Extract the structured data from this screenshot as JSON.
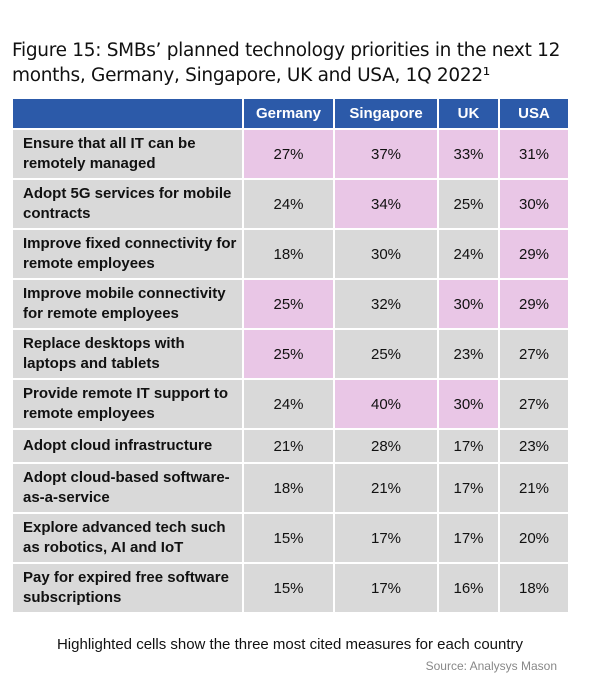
{
  "header": {
    "title": "Figure 15: SMBs’ planned technology priorities in the next 12 months, Germany, Singapore, UK and USA, 1Q 2022¹"
  },
  "table": {
    "columns": [
      "Germany",
      "Singapore",
      "UK",
      "USA"
    ],
    "rows": [
      {
        "label": "Ensure that all IT can be remotely managed",
        "cells": [
          "27%",
          "37%",
          "33%",
          "31%"
        ],
        "highlighted": [
          true,
          true,
          true,
          true
        ]
      },
      {
        "label": "Adopt 5G services for mobile contracts",
        "cells": [
          "24%",
          "34%",
          "25%",
          "30%"
        ],
        "highlighted": [
          false,
          true,
          false,
          true
        ]
      },
      {
        "label": "Improve fixed connectivity for remote employees",
        "cells": [
          "18%",
          "30%",
          "24%",
          "29%"
        ],
        "highlighted": [
          false,
          false,
          false,
          true
        ]
      },
      {
        "label": "Improve mobile connectivity for remote employees",
        "cells": [
          "25%",
          "32%",
          "30%",
          "29%"
        ],
        "highlighted": [
          true,
          false,
          true,
          true
        ]
      },
      {
        "label": "Replace desktops with laptops and tablets",
        "cells": [
          "25%",
          "25%",
          "23%",
          "27%"
        ],
        "highlighted": [
          true,
          false,
          false,
          false
        ]
      },
      {
        "label": "Provide remote IT support to remote employees",
        "cells": [
          "24%",
          "40%",
          "30%",
          "27%"
        ],
        "highlighted": [
          false,
          true,
          true,
          false
        ]
      },
      {
        "label": "Adopt cloud infrastructure",
        "cells": [
          "21%",
          "28%",
          "17%",
          "23%"
        ],
        "highlighted": [
          false,
          false,
          false,
          false
        ]
      },
      {
        "label": "Adopt cloud-based software-as-a-service",
        "cells": [
          "18%",
          "21%",
          "17%",
          "21%"
        ],
        "highlighted": [
          false,
          false,
          false,
          false
        ]
      },
      {
        "label": "Explore advanced tech such as robotics, AI and IoT",
        "cells": [
          "15%",
          "17%",
          "17%",
          "20%"
        ],
        "highlighted": [
          false,
          false,
          false,
          false
        ]
      },
      {
        "label": "Pay for expired free software subscriptions",
        "cells": [
          "15%",
          "17%",
          "16%",
          "18%"
        ],
        "highlighted": [
          false,
          false,
          false,
          false
        ]
      }
    ],
    "header_color": "#2c5aa9",
    "cell_color": "#d9d9d9",
    "highlight_color": "#e9c6e6"
  },
  "footer": {
    "note": "Highlighted cells show the three most cited measures for each country",
    "source": "Source: Analysys Mason"
  }
}
